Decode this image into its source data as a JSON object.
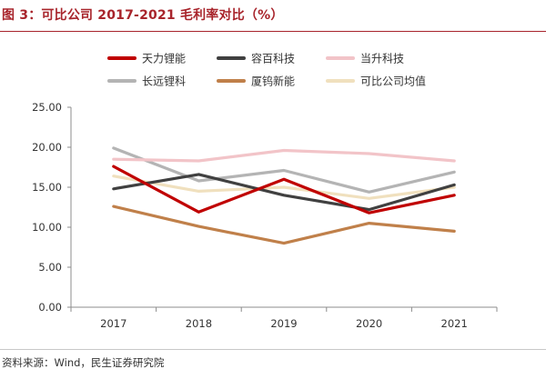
{
  "title": "图 3：可比公司 2017-2021 毛利率对比（%）",
  "source": "资料来源：Wind，民生证券研究院",
  "chart_data": {
    "type": "line",
    "title": "",
    "xlabel": "",
    "ylabel": "",
    "x": [
      "2017",
      "2018",
      "2019",
      "2020",
      "2021"
    ],
    "ylim": [
      0,
      25
    ],
    "yticks": [
      "0.00",
      "5.00",
      "10.00",
      "15.00",
      "20.00",
      "25.00"
    ],
    "grid": false,
    "legend_position": "top",
    "series": [
      {
        "name": "天力锂能",
        "color": "#c00000",
        "values": [
          17.6,
          11.9,
          16.0,
          11.8,
          14.0
        ]
      },
      {
        "name": "容百科技",
        "color": "#404040",
        "values": [
          14.8,
          16.6,
          14.0,
          12.2,
          15.3
        ]
      },
      {
        "name": "当升科技",
        "color": "#f2c4c8",
        "values": [
          18.5,
          18.3,
          19.6,
          19.2,
          18.3
        ]
      },
      {
        "name": "长远锂科",
        "color": "#b4b4b4",
        "values": [
          19.9,
          15.8,
          17.1,
          14.4,
          16.9
        ]
      },
      {
        "name": "厦钨新能",
        "color": "#c0804a",
        "values": [
          12.6,
          10.1,
          8.0,
          10.5,
          9.5
        ]
      },
      {
        "name": "可比公司均值",
        "color": "#f0e0be",
        "values": [
          16.4,
          14.5,
          15.0,
          13.6,
          15.0
        ]
      }
    ]
  }
}
